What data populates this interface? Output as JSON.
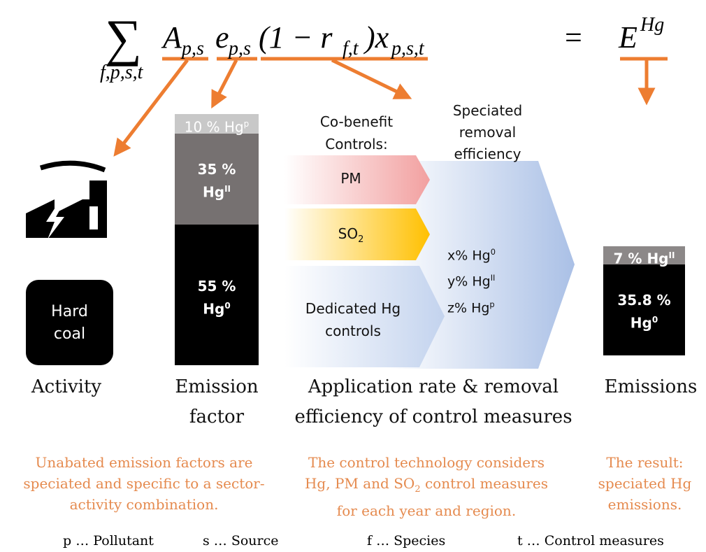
{
  "equation": {
    "sum": "∑",
    "sum_index": "f,p,s,t",
    "terms": [
      {
        "base": "A",
        "sub": "p,s"
      },
      {
        "base": "e",
        "sub": "p,s"
      },
      {
        "base": "(1 − r",
        "sub": "f,t"
      },
      {
        "base": ")x",
        "sub": "p,s,t"
      }
    ],
    "equals": "=",
    "result": {
      "base": "E",
      "sup": "Hg"
    }
  },
  "activity": {
    "label": "Hard coal",
    "caption": "Activity"
  },
  "emission_factor": {
    "segments": [
      {
        "percent": "10 %",
        "species": "Hg",
        "sup": "p"
      },
      {
        "percent": "35 %",
        "species": "Hg",
        "sup": "II"
      },
      {
        "percent": "55 %",
        "species": "Hg",
        "sup": "0"
      }
    ],
    "caption": "Emission factor"
  },
  "controls": {
    "heading": "Co-benefit Controls:",
    "efficiency_heading": "Speciated removal efficiency",
    "items": [
      {
        "label": "PM"
      },
      {
        "label": "SO",
        "sub": "2"
      },
      {
        "label": "Dedicated Hg controls"
      }
    ],
    "efficiency": [
      {
        "text": "x% Hg",
        "sup": "0"
      },
      {
        "text": "y% Hg",
        "sup": "II"
      },
      {
        "text": "z% Hg",
        "sup": "p"
      }
    ],
    "caption": "Application rate & removal efficiency of control measures"
  },
  "emissions": {
    "segments": [
      {
        "percent": "7 %",
        "species": "Hg",
        "sup": "II"
      },
      {
        "percent": "35.8 %",
        "species": "Hg",
        "sup": "0"
      }
    ],
    "caption": "Emissions"
  },
  "notes": [
    {
      "text": "Unabated emission factors are speciated and specific to a sector-activity combination."
    },
    {
      "before": "The control technology considers Hg, PM and SO",
      "sub": "2",
      "after": " control measures for each year and region."
    },
    {
      "text": "The result: speciated Hg emissions."
    }
  ],
  "legend": [
    "p … Pollutant",
    "s … Source",
    "f … Species",
    "t … Control measures"
  ]
}
